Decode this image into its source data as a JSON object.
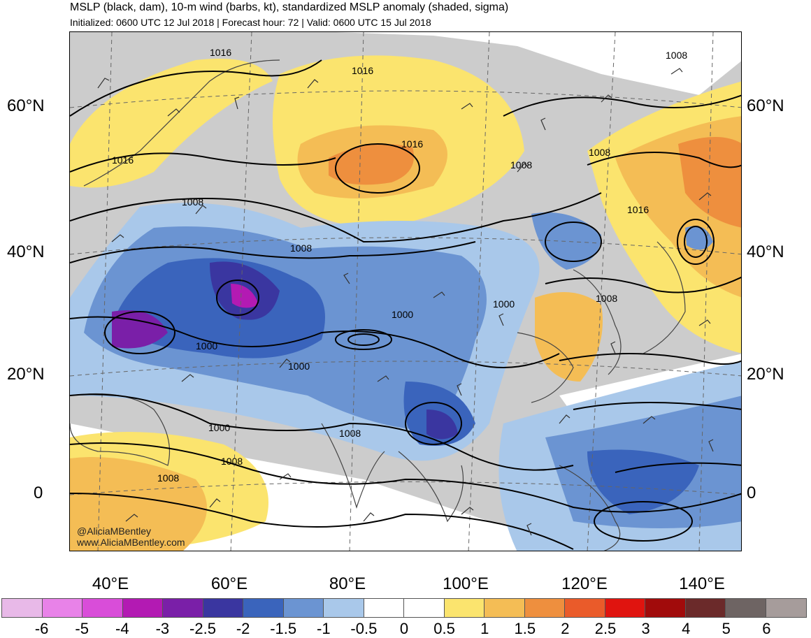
{
  "header": {
    "title": "MSLP (black, dam), 10-m wind (barbs, kt), standardized MSLP anomaly (shaded, sigma)",
    "subtitle": "Initialized: 0600 UTC 12 Jul 2018 | Forecast hour: 72 | Valid: 0600 UTC 15 Jul 2018"
  },
  "axes": {
    "lat_left": [
      "60°N",
      "40°N",
      "20°N",
      "0"
    ],
    "lat_right": [
      "60°N",
      "40°N",
      "20°N",
      "0"
    ],
    "lon": [
      "40°E",
      "60°E",
      "80°E",
      "100°E",
      "120°E",
      "140°E"
    ]
  },
  "contour_labels": [
    "1016",
    "1016",
    "1016",
    "1016",
    "1008",
    "1008",
    "1008",
    "1008",
    "1008",
    "1000",
    "1000",
    "1000",
    "1000",
    "1000",
    "1008",
    "1008",
    "1008",
    "1016",
    "1008"
  ],
  "credit": {
    "handle": "@AliciaMBentley",
    "website": "www.AliciaMBentley.com"
  },
  "colorbar": {
    "labels": [
      "-6",
      "-5",
      "-4",
      "-3",
      "-2.5",
      "-2",
      "-1.5",
      "-1",
      "-0.5",
      "0",
      "0.5",
      "1",
      "1.5",
      "2",
      "2.5",
      "3",
      "4",
      "5",
      "6"
    ],
    "colors": [
      "#e8b9e8",
      "#e882e8",
      "#d94dd9",
      "#b31ab3",
      "#7a1fa8",
      "#3a36a0",
      "#3a64bc",
      "#6b94d2",
      "#a9c8ea",
      "#ffffff",
      "#ffffff",
      "#fbe46e",
      "#f4bd55",
      "#ee8f3e",
      "#ea5b2a",
      "#e0140f",
      "#a10b0b",
      "#6b2a2a",
      "#6e6463",
      "#a69c9b"
    ]
  }
}
